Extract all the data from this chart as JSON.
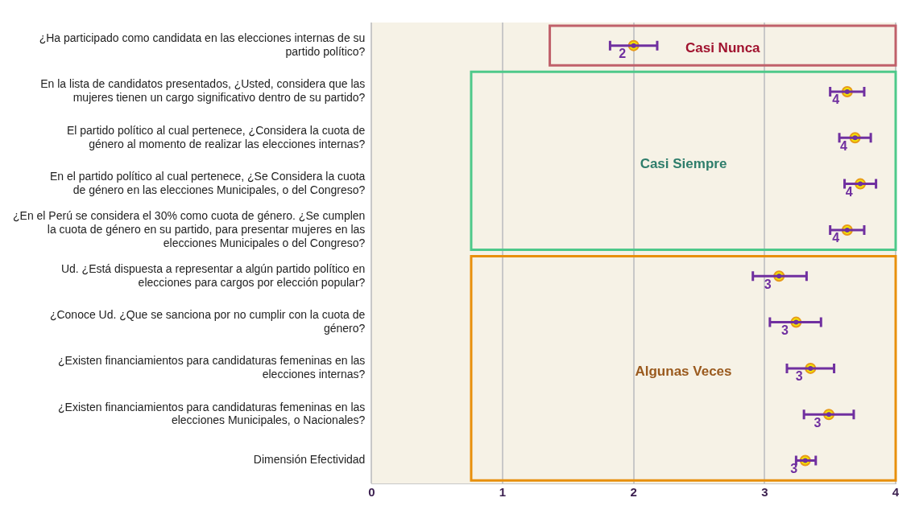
{
  "chart_data": {
    "type": "scatter",
    "orientation": "horizontal",
    "categories": [
      "¿Ha participado como candidata en las elecciones internas de su partido político?",
      "En la lista de candidatos presentados, ¿Usted, considera que las mujeres tienen un cargo significativo dentro de su partido?",
      "El partido político al cual pertenece, ¿Considera la cuota de género al momento de realizar las elecciones internas?",
      "En el partido político al cual pertenece, ¿Se Considera la cuota de género en las elecciones Municipales, o del Congreso?",
      "¿En el Perú se considera el 30% como cuota de género. ¿Se cumplen la cuota de género en su partido, para presentar mujeres en las elecciones Municipales o del Congreso?",
      "Ud. ¿Está dispuesta a representar a algún partido político en elecciones para cargos por elección popular?",
      "¿Conoce Ud. ¿Que se sanciona por no cumplir con la cuota de género?",
      "¿Existen financiamientos para candidaturas femeninas en las elecciones internas?",
      "¿Existen financiamientos para candidaturas femeninas en las elecciones Municipales, o Nacionales?",
      "Dimensión Efectividad"
    ],
    "values": [
      2.0,
      3.63,
      3.69,
      3.73,
      3.63,
      3.11,
      3.24,
      3.35,
      3.49,
      3.31
    ],
    "errors": [
      [
        1.82,
        2.18
      ],
      [
        3.5,
        3.76
      ],
      [
        3.57,
        3.81
      ],
      [
        3.61,
        3.85
      ],
      [
        3.5,
        3.76
      ],
      [
        2.91,
        3.32
      ],
      [
        3.04,
        3.43
      ],
      [
        3.17,
        3.53
      ],
      [
        3.3,
        3.68
      ],
      [
        3.24,
        3.39
      ]
    ],
    "value_labels": [
      "2",
      "4",
      "4",
      "4",
      "4",
      "3",
      "3",
      "3",
      "3",
      "3"
    ],
    "color": "#f2e600",
    "xlim": [
      0,
      4
    ],
    "xticks": [
      0,
      1,
      2,
      3,
      4
    ],
    "grid": "x",
    "marker": "circle",
    "annotations": [
      "Casi Nunca",
      "Casi Siempre",
      "Algunas Veces"
    ]
  }
}
